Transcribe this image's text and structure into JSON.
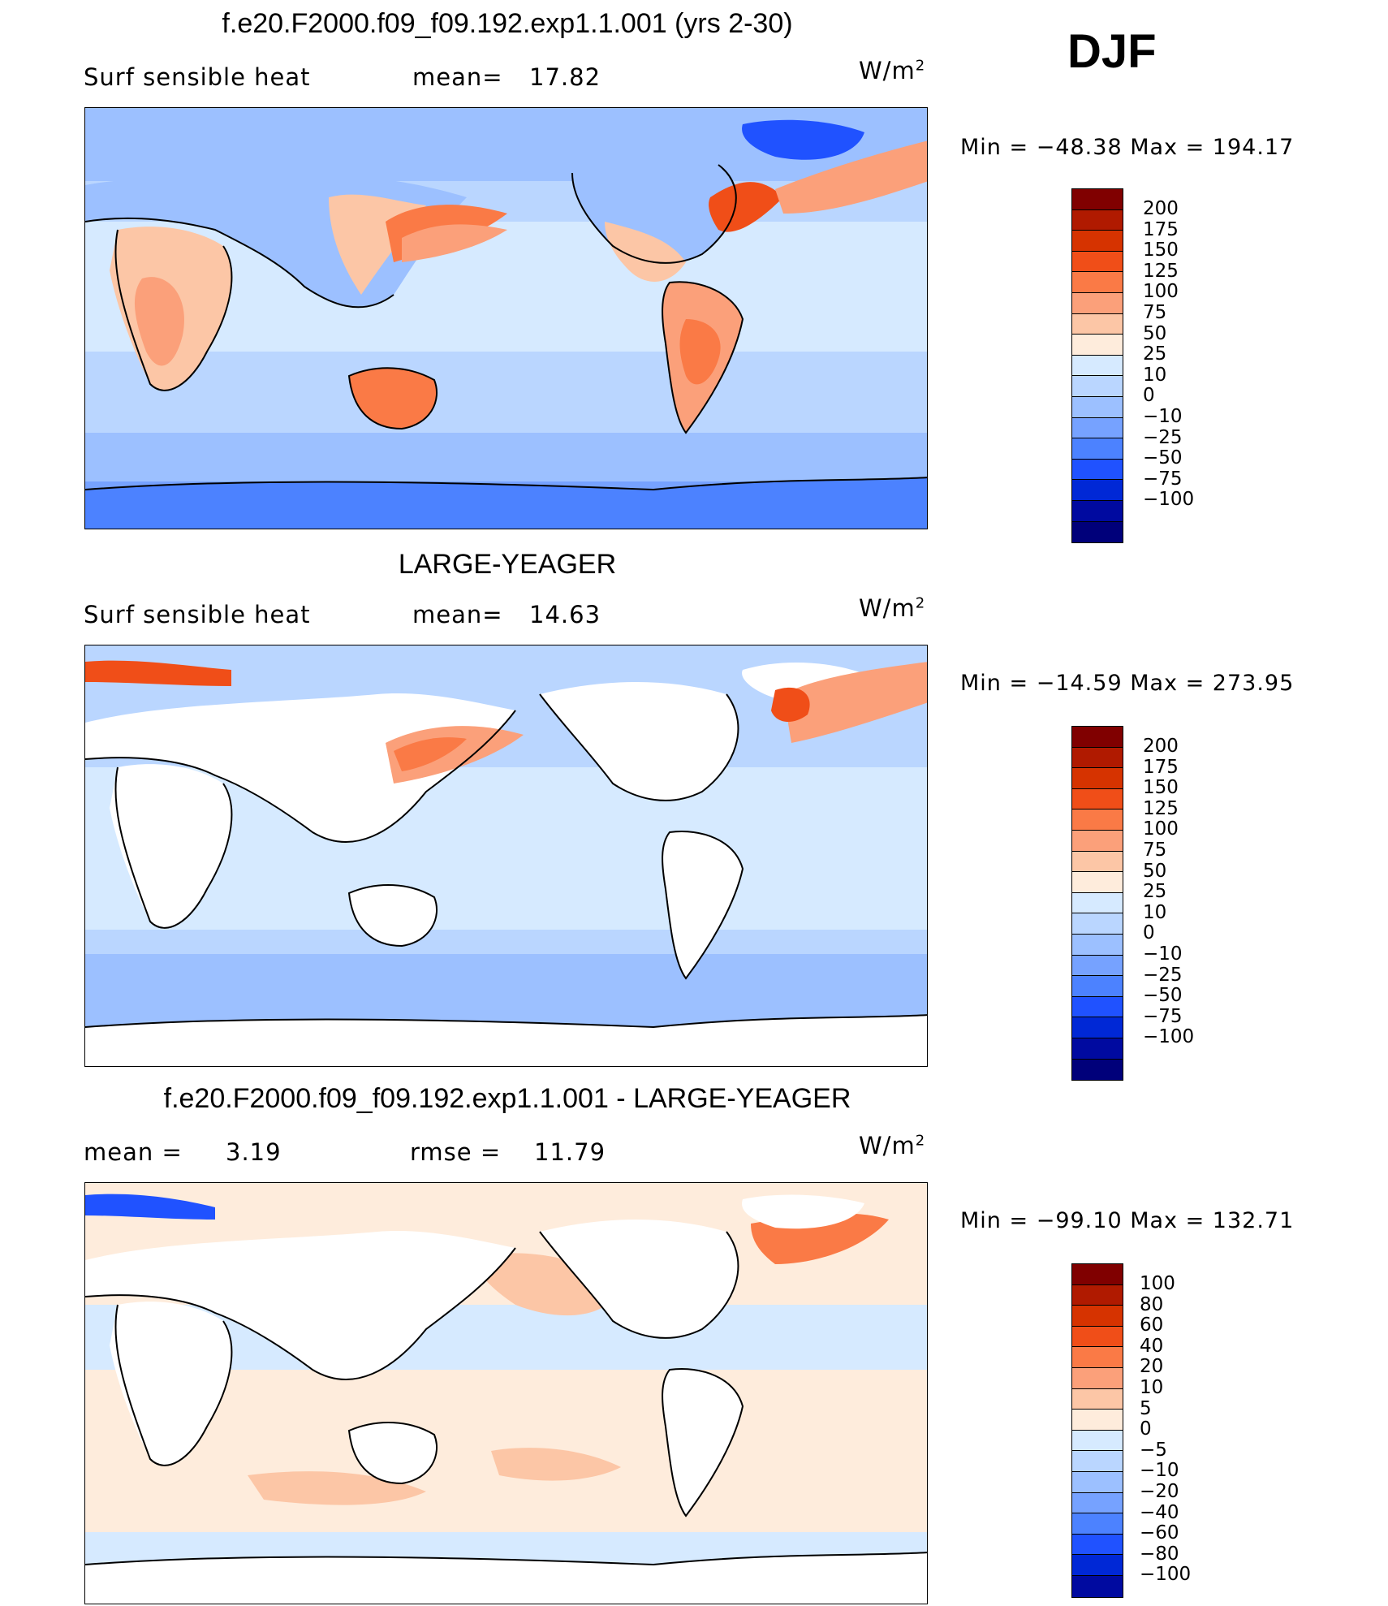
{
  "season": "DJF",
  "colors": {
    "cb": [
      "#800000",
      "#b01a00",
      "#d63300",
      "#f04e18",
      "#fa7a46",
      "#fba07a",
      "#fcc6a6",
      "#feecdc",
      "#d6eaff",
      "#bad6ff",
      "#9cc0ff",
      "#76a2ff",
      "#4c82ff",
      "#2052ff",
      "#0028d6",
      "#000aa0",
      "#00007a"
    ],
    "cb_diff": [
      "#800000",
      "#b01a00",
      "#d63300",
      "#f04e18",
      "#fa7a46",
      "#fba07a",
      "#fcc6a6",
      "#feecdc",
      "#d6eaff",
      "#bad6ff",
      "#9cc0ff",
      "#76a2ff",
      "#4c82ff",
      "#2052ff",
      "#0028d6",
      "#000aa0"
    ],
    "land_outline": "#000000"
  },
  "panels": [
    {
      "title": "f.e20.F2000.f09_f09.192.exp1.1.001 (yrs 2-30)",
      "left_label": "Surf  sensible  heat",
      "stat_label": "mean=",
      "stat_value": "17.82",
      "units": "W/m",
      "units_exp": "2",
      "min_label": "Min  =  −48.38  Max  =  194.17",
      "levels": [
        "200",
        "175",
        "150",
        "125",
        "100",
        "75",
        "50",
        "25",
        "10",
        "0",
        "−10",
        "−25",
        "−50",
        "−75",
        "−100"
      ]
    },
    {
      "title": "LARGE-YEAGER",
      "left_label": "Surf  sensible  heat",
      "stat_label": "mean=",
      "stat_value": "14.63",
      "units": "W/m",
      "units_exp": "2",
      "min_label": "Min  =  −14.59  Max  =  273.95",
      "levels": [
        "200",
        "175",
        "150",
        "125",
        "100",
        "75",
        "50",
        "25",
        "10",
        "0",
        "−10",
        "−25",
        "−50",
        "−75",
        "−100"
      ]
    },
    {
      "title": "f.e20.F2000.f09_f09.192.exp1.1.001 - LARGE-YEAGER",
      "left_label": "mean  =",
      "left_value": "3.19",
      "stat_label": "rmse  =",
      "stat_value": "11.79",
      "units": "W/m",
      "units_exp": "2",
      "min_label": "Min  =  −99.10  Max  =  132.71",
      "levels": [
        "100",
        "80",
        "60",
        "40",
        "20",
        "10",
        "5",
        "0",
        "−5",
        "−10",
        "−20",
        "−40",
        "−60",
        "−80",
        "−100"
      ]
    }
  ]
}
